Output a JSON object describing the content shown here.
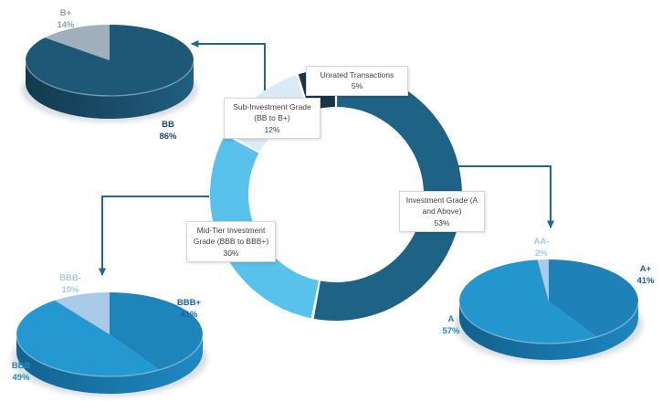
{
  "figure": {
    "background": "#FFFFFF",
    "arrow_color": "#1E6793"
  },
  "chart_data": [
    {
      "id": "rating-mix-donut",
      "type": "donut",
      "legend_position": "callout-boxes",
      "segments": [
        {
          "label": "Investment Grade (A and Above)",
          "value": 53,
          "color": "#1E6285"
        },
        {
          "label": "Mid-Tier Investment Grade (BBB to BBB+)",
          "value": 30,
          "color": "#58C2EC"
        },
        {
          "label": "Sub-Investment Grade (BB to B+)",
          "value": 12,
          "color": "#DCE9F6"
        },
        {
          "label": "Unrated Transactions",
          "value": 5,
          "color": "#16374A"
        }
      ]
    },
    {
      "id": "sub-investment-pie",
      "type": "pie",
      "unit": "%",
      "slices": [
        {
          "label": "BB",
          "value": 86,
          "color": "#1D5876"
        },
        {
          "label": "B+",
          "value": 14,
          "color": "#9FAFBC"
        }
      ],
      "side_gradient": [
        "#12394F",
        "#215E80"
      ]
    },
    {
      "id": "mid-tier-pie",
      "type": "pie",
      "unit": "%",
      "slices": [
        {
          "label": "BBB+",
          "value": 41,
          "color": "#1E85BB"
        },
        {
          "label": "BBB",
          "value": 49,
          "color": "#2597D1"
        },
        {
          "label": "BBB-",
          "value": 10,
          "color": "#A9CBE8"
        }
      ],
      "side_gradient": [
        "#12638E",
        "#2089C4"
      ]
    },
    {
      "id": "investment-grade-pie",
      "type": "pie",
      "unit": "%",
      "slices": [
        {
          "label": "A+",
          "value": 41,
          "color": "#1E82B8"
        },
        {
          "label": "A",
          "value": 57,
          "color": "#2496CE"
        },
        {
          "label": "AA-",
          "value": 2,
          "color": "#A9CBE8"
        }
      ],
      "side_gradient": [
        "#11618C",
        "#1F86C0"
      ]
    }
  ],
  "callouts": {
    "unrated": {
      "line1": "Unrated Transactions",
      "line2": "5%"
    },
    "sub_investment": {
      "line1": "Sub-Investment Grade",
      "line2": "(BB to B+)",
      "line3": "12%"
    },
    "mid_tier": {
      "line1": "Mid-Tier Investment",
      "line2": "Grade (BBB to BBB+)",
      "line3": "30%"
    },
    "investment": {
      "line1": "Investment Grade (A",
      "line2": "and Above)",
      "line3": "53%"
    }
  },
  "pie_labels": {
    "b_plus": {
      "name": "B+",
      "pct": "14%",
      "color": "#8E9EAD"
    },
    "bb": {
      "name": "BB",
      "pct": "86%",
      "color": "#17466E"
    },
    "bbb_minus": {
      "name": "BBB-",
      "pct": "10%",
      "color": "#A6C9E8"
    },
    "bbb_plus": {
      "name": "BBB+",
      "pct": "41%",
      "color": "#2062A5"
    },
    "bbb": {
      "name": "BBB",
      "pct": "49%",
      "color": "#2089C8"
    },
    "aa_minus": {
      "name": "AA-",
      "pct": "2%",
      "color": "#A6C9E8"
    },
    "a_plus": {
      "name": "A+",
      "pct": "41%",
      "color": "#1A5E94"
    },
    "a": {
      "name": "A",
      "pct": "57%",
      "color": "#1C87BF"
    }
  }
}
